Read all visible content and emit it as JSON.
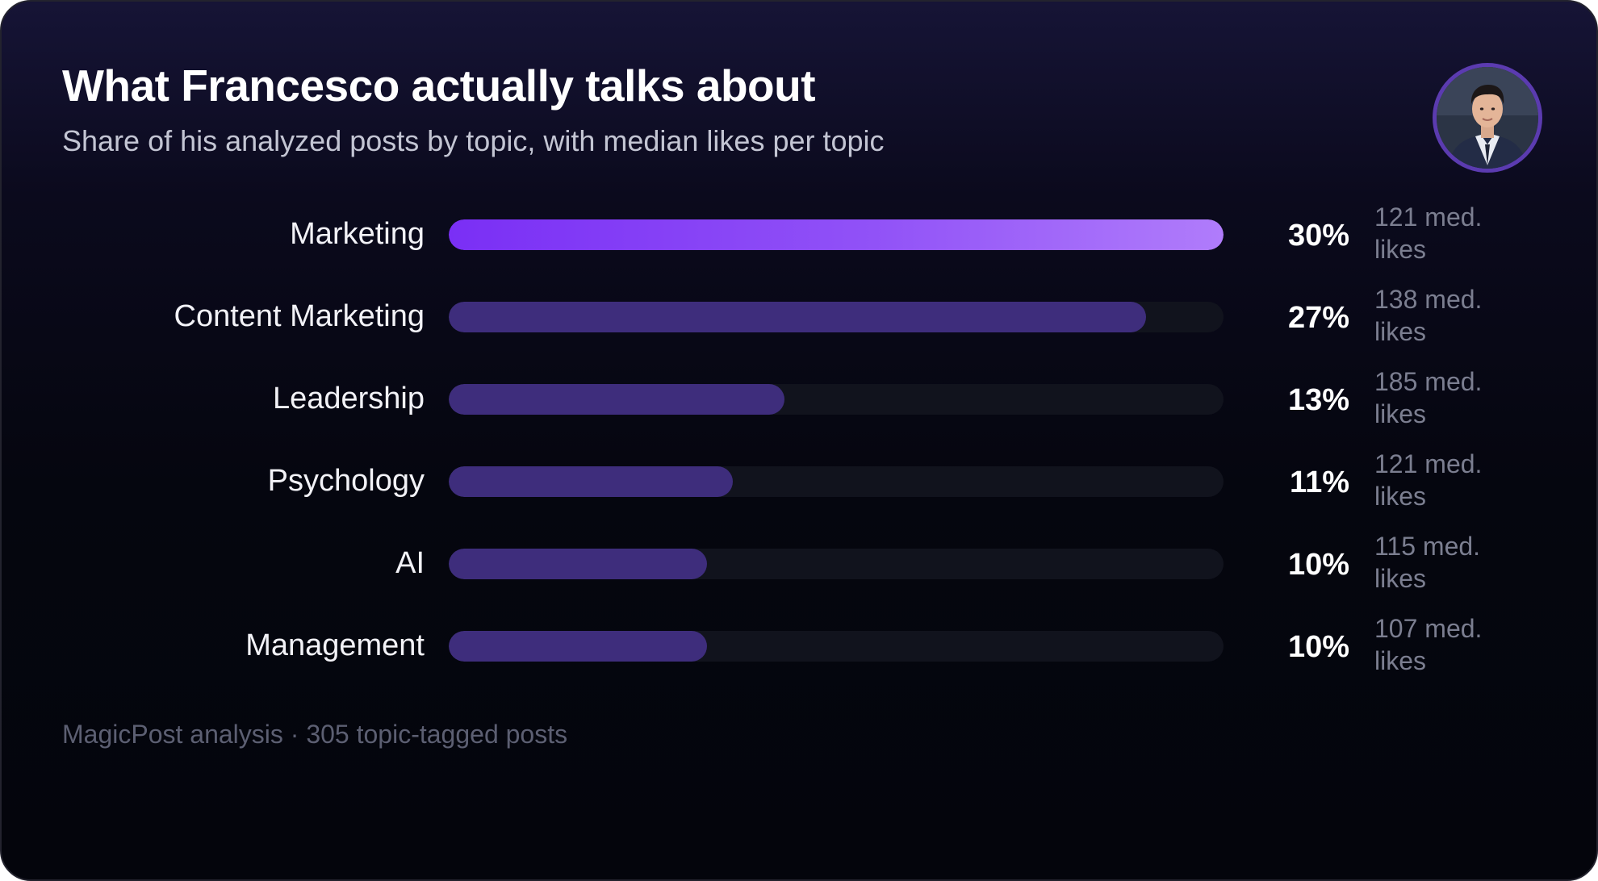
{
  "title": "What Francesco actually talks about",
  "subtitle": "Share of his analyzed posts by topic, with median likes per topic",
  "footer": "MagicPost analysis · 305 topic-tagged posts",
  "avatar": {
    "icon": "profile-photo"
  },
  "colors": {
    "top_bar_gradient": [
      "#7a2ff5",
      "#b07cfb"
    ],
    "bar": "#3e2d7c",
    "track": "#11131d",
    "avatar_ring": "#5b3bb0"
  },
  "chart_data": {
    "type": "bar",
    "orientation": "horizontal",
    "categories": [
      "Marketing",
      "Content Marketing",
      "Leadership",
      "Psychology",
      "AI",
      "Management"
    ],
    "values": [
      30,
      27,
      13,
      11,
      10,
      10
    ],
    "value_labels": [
      "30%",
      "27%",
      "13%",
      "11%",
      "10%",
      "10%"
    ],
    "median_likes": [
      121,
      138,
      185,
      121,
      115,
      107
    ],
    "median_likes_labels": [
      "121 med. likes",
      "138 med. likes",
      "185 med. likes",
      "121 med. likes",
      "115 med. likes",
      "107 med. likes"
    ],
    "xlim": [
      0,
      30
    ],
    "title": "What Francesco actually talks about",
    "subtitle": "Share of his analyzed posts by topic, with median likes per topic",
    "grid": false,
    "legend": "none"
  }
}
